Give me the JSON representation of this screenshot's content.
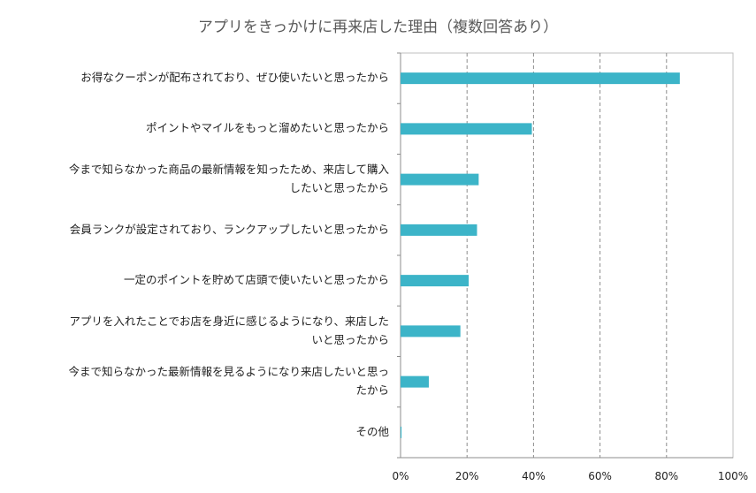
{
  "chart_data": {
    "type": "bar",
    "orientation": "horizontal",
    "title": "アプリをきっかけに再来店した理由（複数回答あり）",
    "categories": [
      "お得なクーポンが配布されており、ぜひ使いたいと思ったから",
      "ポイントやマイルをもっと溜めたいと思ったから",
      "今まで知らなかった商品の最新情報を知ったため、来店して購入したいと思ったから",
      "会員ランクが設定されており、ランクアップしたいと思ったから",
      "一定のポイントを貯めて店頭で使いたいと思ったから",
      "アプリを入れたことでお店を身近に感じるようになり、来店したいと思ったから",
      "今まで知らなかった最新情報を見るようになり来店したいと思ったから",
      "その他"
    ],
    "category_lines": [
      [
        "お得なクーポンが配布されており、ぜひ使いたいと思ったから"
      ],
      [
        "ポイントやマイルをもっと溜めたいと思ったから"
      ],
      [
        "今まで知らなかった商品の最新情報を知ったため、来店して購入",
        "したいと思ったから"
      ],
      [
        "会員ランクが設定されており、ランクアップしたいと思ったから"
      ],
      [
        "一定のポイントを貯めて店頭で使いたいと思ったから"
      ],
      [
        "アプリを入れたことでお店を身近に感じるようになり、来店した",
        "いと思ったから"
      ],
      [
        "今まで知らなかった最新情報を見るようになり来店したいと思っ",
        "たから"
      ],
      [
        "その他"
      ]
    ],
    "values": [
      84,
      39.5,
      23.5,
      23,
      20.5,
      18,
      8.5,
      0.3
    ],
    "xlim": [
      0,
      100
    ],
    "xticks": [
      0,
      20,
      40,
      60,
      80,
      100
    ],
    "xtick_labels": [
      "0%",
      "20%",
      "40%",
      "60%",
      "80%",
      "100%"
    ],
    "xlabel": "",
    "ylabel": "",
    "bar_color": "#3CB4C8",
    "grid": "vertical-dashed",
    "legend": "none"
  }
}
